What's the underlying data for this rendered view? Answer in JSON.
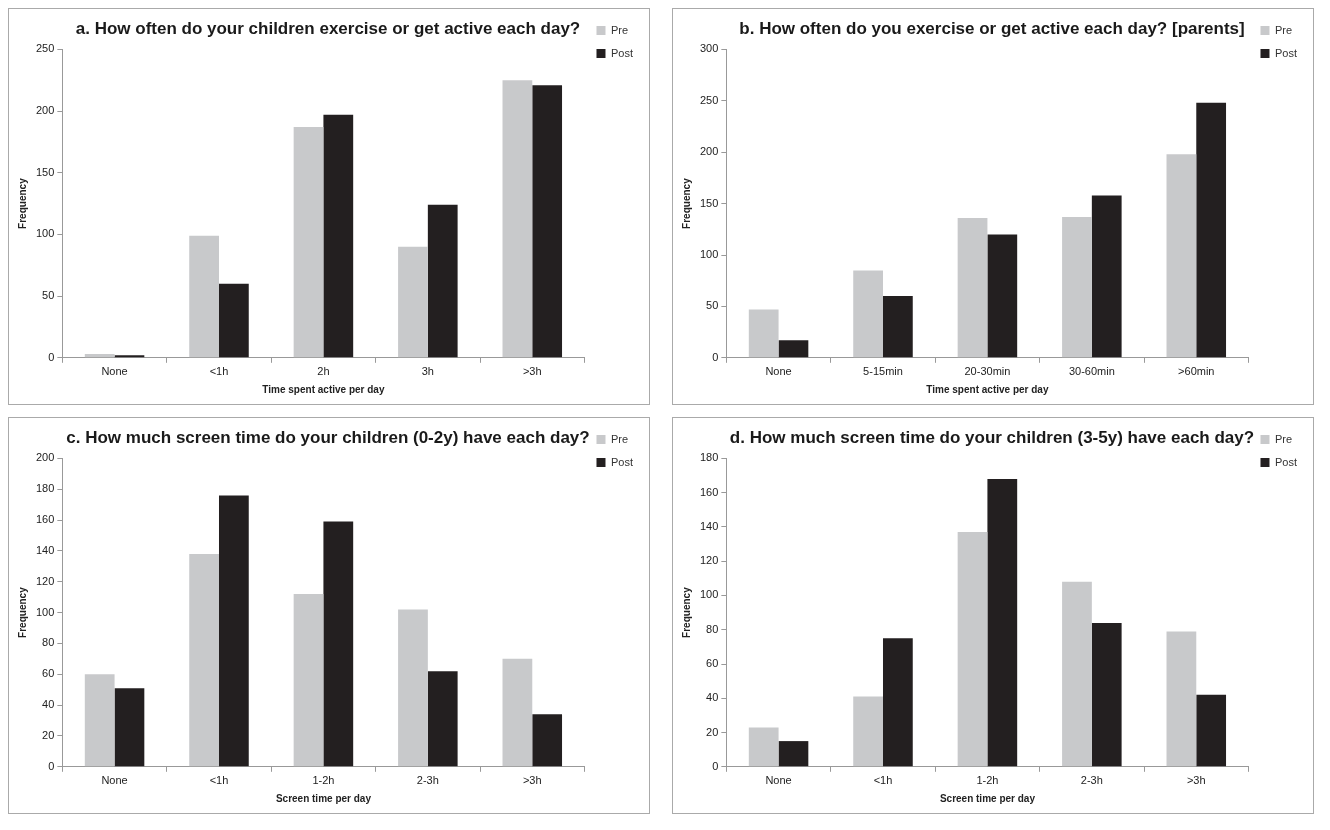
{
  "chart_data": [
    {
      "type": "bar",
      "title": "a. How often do your children exercise or get active each day?",
      "xlabel": "Time spent active per day",
      "ylabel": "Frequency",
      "categories": [
        "None",
        "<1h",
        "2h",
        "3h",
        ">3h"
      ],
      "series": [
        {
          "name": "Pre",
          "color": "#c8c9cb",
          "values": [
            3,
            99,
            187,
            90,
            225
          ]
        },
        {
          "name": "Post",
          "color": "#231f20",
          "values": [
            2,
            60,
            197,
            124,
            221
          ]
        }
      ],
      "ylim": [
        0,
        250
      ],
      "yticks": [
        0,
        50,
        100,
        150,
        200,
        250
      ],
      "legend": "top right"
    },
    {
      "type": "bar",
      "title": "b. How often do you exercise or get active each day? [parents]",
      "xlabel": "Time spent active per day",
      "ylabel": "Frequency",
      "categories": [
        "None",
        "5-15min",
        "20-30min",
        "30-60min",
        ">60min"
      ],
      "series": [
        {
          "name": "Pre",
          "color": "#c8c9cb",
          "values": [
            47,
            85,
            136,
            137,
            198
          ]
        },
        {
          "name": "Post",
          "color": "#231f20",
          "values": [
            17,
            60,
            120,
            158,
            248
          ]
        }
      ],
      "ylim": [
        0,
        300
      ],
      "yticks": [
        0,
        50,
        100,
        150,
        200,
        250,
        300
      ],
      "legend": "top right"
    },
    {
      "type": "bar",
      "title": "c. How much screen time do your children (0-2y) have each day?",
      "xlabel": "Screen time per day",
      "ylabel": "Frequency",
      "categories": [
        "None",
        "<1h",
        "1-2h",
        "2-3h",
        ">3h"
      ],
      "series": [
        {
          "name": "Pre",
          "color": "#c8c9cb",
          "values": [
            60,
            138,
            112,
            102,
            70
          ]
        },
        {
          "name": "Post",
          "color": "#231f20",
          "values": [
            51,
            176,
            159,
            62,
            34
          ]
        }
      ],
      "ylim": [
        0,
        200
      ],
      "yticks": [
        0,
        20,
        40,
        60,
        80,
        100,
        120,
        140,
        160,
        180,
        200
      ],
      "legend": "top right"
    },
    {
      "type": "bar",
      "title": "d. How much screen time do your children (3-5y) have each day?",
      "xlabel": "Screen time per day",
      "ylabel": "Frequency",
      "categories": [
        "None",
        "<1h",
        "1-2h",
        "2-3h",
        ">3h"
      ],
      "series": [
        {
          "name": "Pre",
          "color": "#c8c9cb",
          "values": [
            23,
            41,
            137,
            108,
            79
          ]
        },
        {
          "name": "Post",
          "color": "#231f20",
          "values": [
            15,
            75,
            168,
            84,
            42
          ]
        }
      ],
      "ylim": [
        0,
        180
      ],
      "yticks": [
        0,
        20,
        40,
        60,
        80,
        100,
        120,
        140,
        160,
        180
      ],
      "legend": "top right"
    }
  ]
}
